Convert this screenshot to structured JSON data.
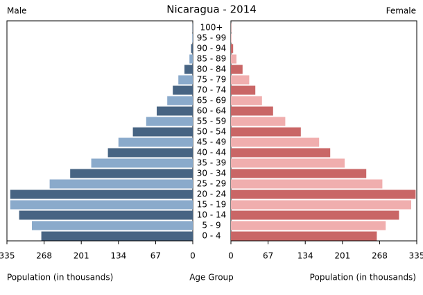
{
  "chart_data": {
    "type": "pyramid",
    "title": "Nicaragua - 2014",
    "x_label": "Population (in thousands)",
    "y_label": "Age Group",
    "categories": [
      "0 - 4",
      "5 - 9",
      "10 - 14",
      "15 - 19",
      "20 - 24",
      "25 - 29",
      "30 - 34",
      "35 - 39",
      "40 - 44",
      "45 - 49",
      "50 - 54",
      "55 - 59",
      "60 - 64",
      "65 - 69",
      "70 - 74",
      "75 - 79",
      "80 - 84",
      "85 - 89",
      "90 - 94",
      "95 - 99",
      "100+"
    ],
    "series": [
      {
        "name": "Male",
        "colors": [
          "#476483",
          "#8aaacb"
        ],
        "values": [
          273,
          290,
          313,
          329,
          329,
          258,
          221,
          183,
          153,
          134,
          108,
          84,
          65,
          46,
          36,
          26,
          15,
          6,
          3,
          1,
          0.5
        ]
      },
      {
        "name": "Female",
        "colors": [
          "#c96666",
          "#f0aeae"
        ],
        "values": [
          263,
          279,
          303,
          325,
          333,
          273,
          244,
          205,
          179,
          159,
          126,
          98,
          76,
          56,
          44,
          33,
          21,
          10,
          4,
          1,
          0.5
        ]
      }
    ],
    "xlim": [
      0,
      335
    ],
    "xticks": [
      0,
      67,
      134,
      201,
      268,
      335
    ]
  }
}
